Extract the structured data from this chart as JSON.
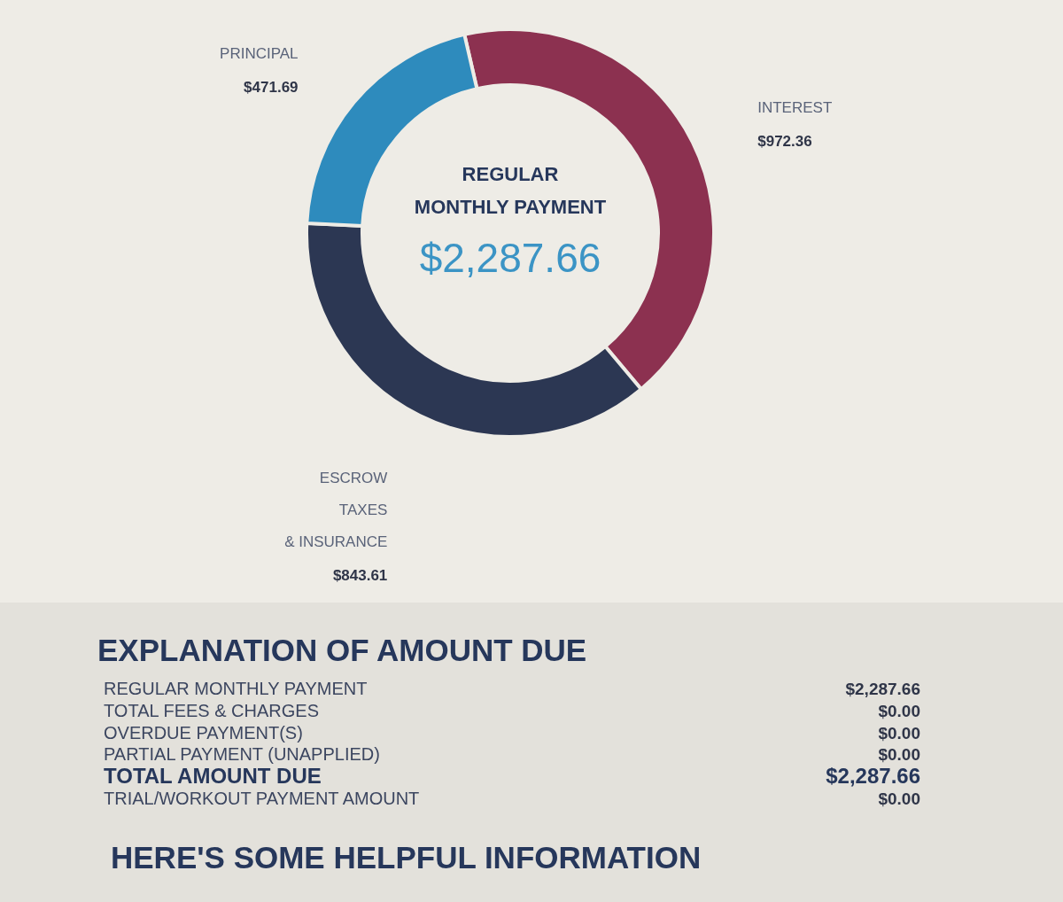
{
  "chart_data": [
    {
      "type": "donut",
      "title": "REGULAR MONTHLY PAYMENT",
      "annotations": [
        "$2,287.66"
      ],
      "categories": [
        "INTEREST",
        "ESCROW\nTAXES\n& INSURANCE",
        "PRINCIPAL"
      ],
      "values": [
        972.36,
        843.61,
        471.69
      ],
      "colors": [
        "#8c3150",
        "#2c3753",
        "#2e8bbd"
      ],
      "value_labels": [
        "$972.36",
        "$843.61",
        "$471.69"
      ]
    },
    {
      "type": "other",
      "title": "EXPLANATION OF AMOUNT DUE",
      "annotations": [
        "REGULAR MONTHLY PAYMENT",
        "$2,287.66",
        "TOTAL FEES & CHARGES",
        "$0.00",
        "OVERDUE PAYMENT(S)",
        "$0.00",
        "PARTIAL PAYMENT (UNAPPLIED)",
        "$0.00",
        "TOTAL AMOUNT DUE",
        "$2,287.66",
        "TRIAL/WORKOUT PAYMENT AMOUNT",
        "$0.00"
      ]
    },
    {
      "type": "other",
      "title": "HERE'S SOME HELPFUL INFORMATION"
    }
  ]
}
